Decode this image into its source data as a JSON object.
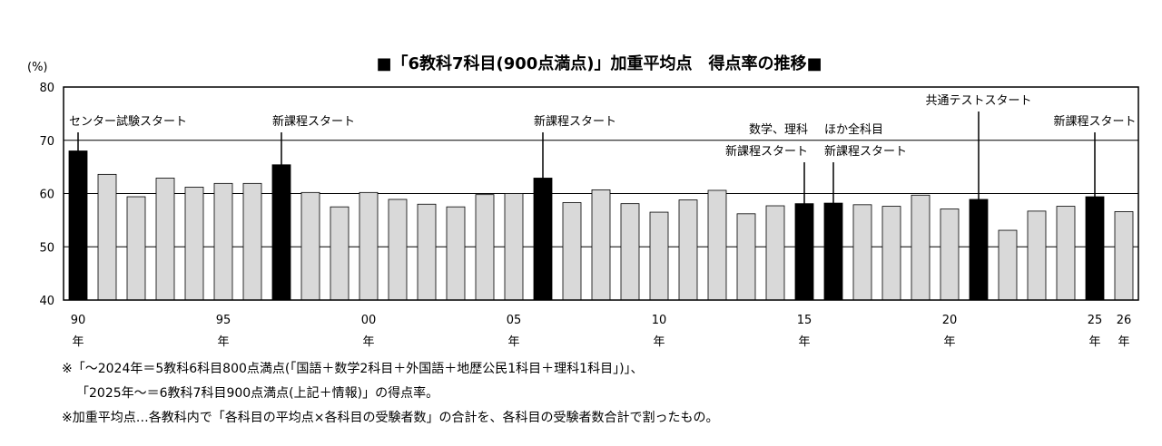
{
  "chart_data": {
    "type": "bar",
    "title": "■「6教科7科目(900点満点)」加重平均点　得点率の推移■",
    "ylabel": "(%)",
    "ylim": [
      40,
      80
    ],
    "yticks": [
      40,
      50,
      60,
      70,
      80
    ],
    "grid": true,
    "categories": [
      "1990",
      "1991",
      "1992",
      "1993",
      "1994",
      "1995",
      "1996",
      "1997",
      "1998",
      "1999",
      "2000",
      "2001",
      "2002",
      "2003",
      "2004",
      "2005",
      "2006",
      "2007",
      "2008",
      "2009",
      "2010",
      "2011",
      "2012",
      "2013",
      "2014",
      "2015",
      "2016",
      "2017",
      "2018",
      "2019",
      "2020",
      "2021",
      "2022",
      "2023",
      "2024",
      "2025",
      "2026"
    ],
    "values": [
      68.0,
      63.6,
      59.4,
      62.9,
      61.2,
      61.9,
      61.9,
      65.4,
      60.2,
      57.5,
      60.2,
      58.9,
      58.0,
      57.5,
      59.8,
      60.0,
      62.9,
      58.3,
      60.7,
      58.1,
      56.5,
      58.8,
      60.6,
      56.2,
      57.7,
      58.1,
      58.2,
      57.9,
      57.6,
      59.7,
      57.1,
      58.9,
      53.1,
      56.7,
      57.6,
      59.4,
      56.6
    ],
    "highlight_indices": [
      0,
      7,
      16,
      25,
      26,
      31,
      35
    ],
    "colors": {
      "normal": "#d9d9d9",
      "highlight": "#000000",
      "grid": "#000000"
    },
    "xtick_labels": [
      {
        "index": 0,
        "line1": "90",
        "line2": "年"
      },
      {
        "index": 5,
        "line1": "95",
        "line2": "年"
      },
      {
        "index": 10,
        "line1": "00",
        "line2": "年"
      },
      {
        "index": 15,
        "line1": "05",
        "line2": "年"
      },
      {
        "index": 20,
        "line1": "10",
        "line2": "年"
      },
      {
        "index": 25,
        "line1": "15",
        "line2": "年"
      },
      {
        "index": 30,
        "line1": "20",
        "line2": "年"
      },
      {
        "index": 35,
        "line1": "25",
        "line2": "年"
      },
      {
        "index": 36,
        "line1": "26",
        "line2": "年"
      }
    ],
    "annotations": [
      {
        "index": 0,
        "lines": [
          "センター試験スタート"
        ],
        "align": "start"
      },
      {
        "index": 7,
        "lines": [
          "新課程スタート"
        ],
        "align": "start"
      },
      {
        "index": 16,
        "lines": [
          "新課程スタート"
        ],
        "align": "start"
      },
      {
        "index": 25,
        "lines": [
          "数学、理科",
          "新課程スタート"
        ],
        "align": "end"
      },
      {
        "index": 26,
        "lines": [
          "ほか全科目",
          "新課程スタート"
        ],
        "align": "start"
      },
      {
        "index": 31,
        "lines": [
          "共通テストスタート"
        ],
        "align": "middle"
      },
      {
        "index": 35,
        "lines": [
          "新課程スタート"
        ],
        "align": "middle"
      }
    ]
  },
  "notes": [
    "※「～2024年＝5教科6科目800点満点(「国語＋数学2科目＋外国語＋地歴公民1科目＋理科1科目」)」、",
    "「2025年～＝6教科7科目900点満点(上記＋情報)」の得点率。",
    "※加重平均点…各教科内で「各科目の平均点×各科目の受験者数」の合計を、各科目の受験者数合計で割ったもの。"
  ]
}
